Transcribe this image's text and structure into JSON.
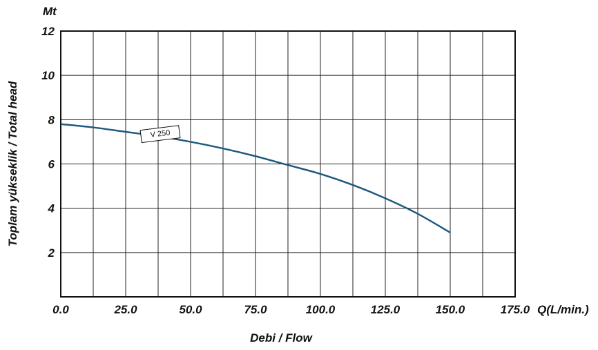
{
  "chart_data": {
    "type": "line",
    "title": "",
    "xlabel": "Debi / Flow",
    "ylabel": "Toplam yükseklik / Total head",
    "x_unit": "Q(L/min.)",
    "y_unit": "Mt",
    "xlim": [
      0,
      175
    ],
    "ylim": [
      0,
      12
    ],
    "x_ticks": [
      "0.0",
      "25.0",
      "50.0",
      "75.0",
      "100.0",
      "125.0",
      "150.0",
      "175.0"
    ],
    "y_ticks": [
      "2",
      "4",
      "6",
      "8",
      "10",
      "12"
    ],
    "x_minor_step": 12.5,
    "y_step": 2,
    "grid": true,
    "series": [
      {
        "name": "V 250",
        "color": "#1e5a80",
        "x": [
          0,
          12.5,
          25,
          37.5,
          50,
          62.5,
          75,
          87.5,
          100,
          112.5,
          125,
          137.5,
          150
        ],
        "y": [
          7.8,
          7.65,
          7.45,
          7.25,
          7.0,
          6.7,
          6.35,
          5.95,
          5.55,
          5.05,
          4.45,
          3.75,
          2.9
        ]
      }
    ]
  }
}
